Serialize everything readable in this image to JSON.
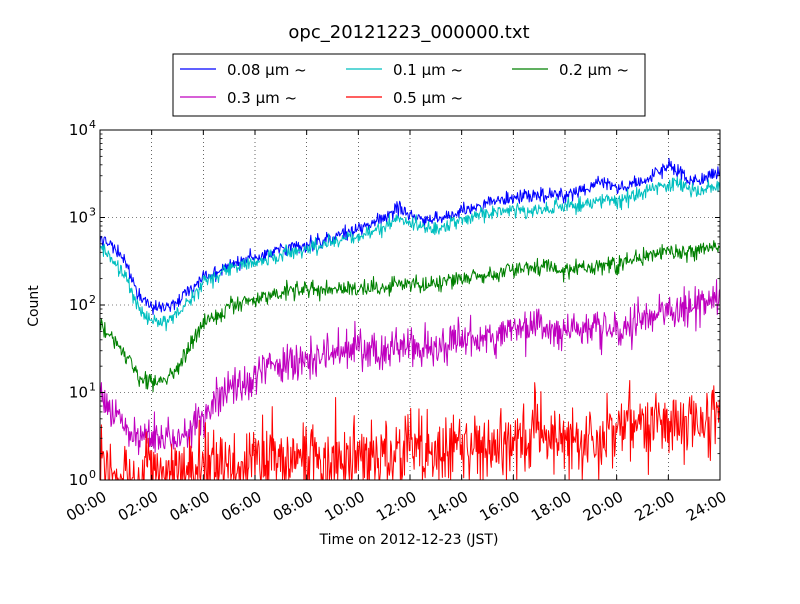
{
  "chart_data": {
    "type": "line",
    "title": "opc_20121223_000000.txt",
    "xlabel": "Time on 2012-12-23 (JST)",
    "ylabel": "Count",
    "x_unit": "time of day (JST)",
    "xlim": [
      "00:00",
      "24:00"
    ],
    "ylim": [
      1,
      10000
    ],
    "yscale": "log",
    "grid": true,
    "legend_position": "top-center",
    "x_ticks": [
      "00:00",
      "02:00",
      "04:00",
      "06:00",
      "08:00",
      "10:00",
      "12:00",
      "14:00",
      "16:00",
      "18:00",
      "20:00",
      "22:00",
      "24:00"
    ],
    "y_ticks": [
      {
        "base": "10",
        "exp": "0"
      },
      {
        "base": "10",
        "exp": "1"
      },
      {
        "base": "10",
        "exp": "2"
      },
      {
        "base": "10",
        "exp": "3"
      },
      {
        "base": "10",
        "exp": "4"
      }
    ],
    "x": [
      "00:00",
      "00:30",
      "01:00",
      "01:30",
      "02:00",
      "02:30",
      "03:00",
      "03:30",
      "04:00",
      "05:00",
      "06:00",
      "07:00",
      "08:00",
      "09:00",
      "10:00",
      "11:00",
      "11:30",
      "12:00",
      "12:30",
      "13:00",
      "13:30",
      "14:00",
      "15:00",
      "16:00",
      "17:00",
      "18:00",
      "19:00",
      "19:30",
      "20:00",
      "21:00",
      "22:00",
      "22:30",
      "23:00",
      "24:00"
    ],
    "series": [
      {
        "name": "0.08 μm ~",
        "color": "#0000ff",
        "noise": 0.06,
        "values": [
          650,
          450,
          300,
          120,
          95,
          95,
          110,
          150,
          200,
          280,
          340,
          420,
          490,
          580,
          750,
          1000,
          1300,
          1100,
          900,
          950,
          1050,
          1200,
          1500,
          1700,
          1800,
          1800,
          2200,
          2600,
          2200,
          2600,
          3800,
          3200,
          2500,
          3300
        ]
      },
      {
        "name": "0.1 μm ~",
        "color": "#00bfbf",
        "noise": 0.06,
        "values": [
          450,
          330,
          220,
          85,
          65,
          65,
          80,
          120,
          180,
          260,
          310,
          380,
          430,
          520,
          620,
          780,
          1000,
          900,
          750,
          760,
          830,
          900,
          1100,
          1200,
          1250,
          1300,
          1500,
          1650,
          1500,
          1900,
          2500,
          2400,
          2000,
          2300
        ]
      },
      {
        "name": "0.2 μm ~",
        "color": "#008000",
        "noise": 0.07,
        "values": [
          60,
          40,
          25,
          15,
          13,
          13,
          18,
          35,
          60,
          95,
          120,
          140,
          155,
          150,
          155,
          165,
          180,
          185,
          160,
          175,
          195,
          200,
          220,
          250,
          270,
          250,
          280,
          300,
          280,
          350,
          420,
          380,
          420,
          500
        ]
      },
      {
        "name": "0.3 μm ~",
        "color": "#bf00bf",
        "noise": 0.16,
        "values": [
          10,
          6,
          4,
          3,
          3,
          3,
          3,
          4,
          6,
          10,
          15,
          20,
          24,
          27,
          30,
          30,
          32,
          34,
          33,
          34,
          36,
          38,
          45,
          52,
          55,
          50,
          55,
          58,
          55,
          70,
          90,
          80,
          100,
          120
        ]
      },
      {
        "name": "0.5 μm ~",
        "color": "#ff0000",
        "noise": 0.3,
        "values": [
          1.5,
          1.3,
          1.2,
          1.1,
          1.1,
          1.1,
          1.1,
          1.2,
          1.3,
          1.4,
          1.5,
          1.6,
          1.7,
          1.8,
          1.9,
          2.0,
          2.1,
          2.1,
          2.1,
          2.1,
          2.2,
          2.3,
          2.5,
          2.8,
          3.0,
          3.1,
          3.3,
          3.5,
          3.5,
          4.0,
          4.5,
          4.5,
          5.0,
          5.5
        ]
      }
    ]
  }
}
